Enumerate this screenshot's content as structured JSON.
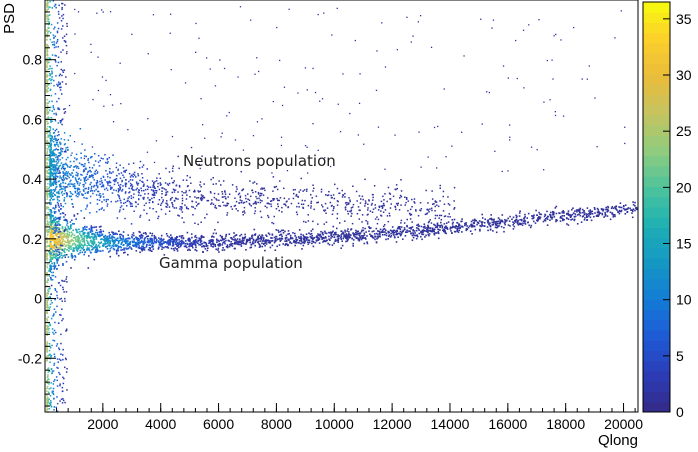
{
  "chart_data": {
    "type": "heatmap",
    "title": "",
    "xlabel": "Qlong",
    "ylabel": "PSD",
    "xlim": [
      0,
      20500
    ],
    "ylim": [
      -0.38,
      1.0
    ],
    "x_ticks": [
      2000,
      4000,
      6000,
      8000,
      10000,
      12000,
      14000,
      16000,
      18000,
      20000
    ],
    "y_ticks": [
      -0.2,
      0,
      0.2,
      0.4,
      0.6,
      0.8
    ],
    "colorbar": {
      "ticks": [
        0,
        5,
        10,
        15,
        20,
        25,
        30,
        35
      ],
      "range": [
        0,
        36.5
      ],
      "colors": [
        "#352a87",
        "#2c3bb5",
        "#1f5ad6",
        "#137bd6",
        "#1597c4",
        "#1db0b3",
        "#4cc39d",
        "#8fcb7e",
        "#c4c460",
        "#e9bc3c",
        "#fbcf2b",
        "#f9fb0e"
      ]
    },
    "populations": [
      {
        "label": "Neutrons population",
        "psd_center": [
          [
            300,
            0.44
          ],
          [
            1000,
            0.4
          ],
          [
            2000,
            0.38
          ],
          [
            4000,
            0.35
          ],
          [
            6000,
            0.34
          ],
          [
            8000,
            0.33
          ],
          [
            10000,
            0.32
          ],
          [
            12000,
            0.31
          ],
          [
            14000,
            0.3
          ]
        ],
        "peak_counts": 14
      },
      {
        "label": "Gamma population",
        "psd_center": [
          [
            100,
            0.2
          ],
          [
            1000,
            0.2
          ],
          [
            2000,
            0.19
          ],
          [
            4000,
            0.19
          ],
          [
            6000,
            0.19
          ],
          [
            8000,
            0.2
          ],
          [
            10000,
            0.21
          ],
          [
            12000,
            0.22
          ],
          [
            14000,
            0.24
          ],
          [
            16000,
            0.26
          ],
          [
            18000,
            0.28
          ],
          [
            20000,
            0.3
          ]
        ],
        "peak_counts": 36
      }
    ],
    "annotations": [
      {
        "text": "Neutrons population",
        "x": 4600,
        "y": 0.44
      },
      {
        "text": "Gamma population",
        "x": 3900,
        "y": 0.11
      }
    ]
  }
}
